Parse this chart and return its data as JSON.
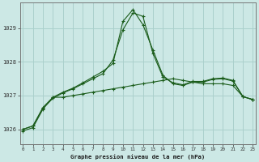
{
  "title": "Graphe pression niveau de la mer (hPa)",
  "bg_color": "#cce8e5",
  "grid_color": "#aad0cc",
  "line_color": "#1a5c1a",
  "x_ticks": [
    0,
    1,
    2,
    3,
    4,
    5,
    6,
    7,
    8,
    9,
    10,
    11,
    12,
    13,
    14,
    15,
    16,
    17,
    18,
    19,
    20,
    21,
    22,
    23
  ],
  "yticks": [
    1026,
    1027,
    1028,
    1029
  ],
  "ylim": [
    1025.55,
    1029.75
  ],
  "xlim": [
    -0.3,
    23.3
  ],
  "series1": [
    1025.95,
    1026.05,
    1026.6,
    1026.95,
    1026.95,
    1027.0,
    1027.05,
    1027.1,
    1027.15,
    1027.2,
    1027.25,
    1027.3,
    1027.35,
    1027.4,
    1027.45,
    1027.5,
    1027.45,
    1027.4,
    1027.35,
    1027.35,
    1027.35,
    1027.3,
    1026.97,
    1026.88
  ],
  "series2": [
    1026.0,
    1026.1,
    1026.62,
    1026.92,
    1027.08,
    1027.2,
    1027.35,
    1027.5,
    1027.65,
    1028.05,
    1028.95,
    1029.45,
    1029.35,
    1028.25,
    1027.55,
    1027.38,
    1027.32,
    1027.42,
    1027.42,
    1027.5,
    1027.52,
    1027.45,
    1026.97,
    1026.88
  ],
  "series3": [
    1026.0,
    1026.1,
    1026.65,
    1026.95,
    1027.1,
    1027.22,
    1027.38,
    1027.55,
    1027.72,
    1027.95,
    1029.2,
    1029.55,
    1029.1,
    1028.35,
    1027.6,
    1027.35,
    1027.3,
    1027.4,
    1027.4,
    1027.48,
    1027.5,
    1027.43,
    1026.97,
    1026.88
  ]
}
